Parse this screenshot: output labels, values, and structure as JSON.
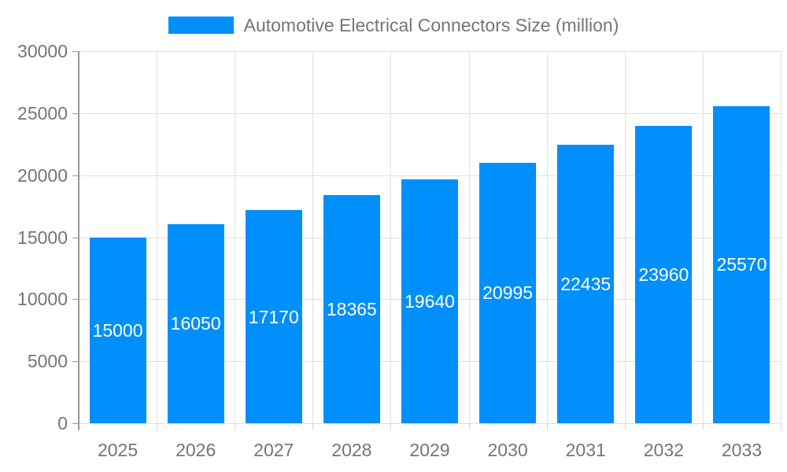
{
  "legend": {
    "label": "Automotive Electrical Connectors Size (million)"
  },
  "colors": {
    "bar": "#008FFB",
    "axis_label": "#757575",
    "grid_line": "#e0e0e0",
    "axis_line": "#999999",
    "value_label": "#ffffff"
  },
  "chart_data": {
    "type": "bar",
    "title": "Automotive Electrical Connectors Size (million)",
    "categories": [
      "2025",
      "2026",
      "2027",
      "2028",
      "2029",
      "2030",
      "2031",
      "2032",
      "2033"
    ],
    "values": [
      15000,
      16050,
      17170,
      18365,
      19640,
      20995,
      22435,
      23960,
      25570
    ],
    "xlabel": "",
    "ylabel": "",
    "ylim": [
      0,
      30000
    ],
    "yticks": [
      0,
      5000,
      10000,
      15000,
      20000,
      25000,
      30000
    ],
    "legend_position": "top-center",
    "grid": true,
    "value_label_position": "inside-center"
  }
}
